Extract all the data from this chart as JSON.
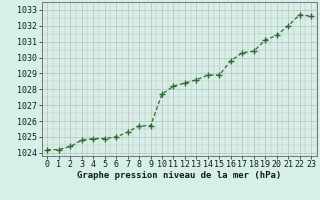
{
  "x": [
    0,
    1,
    2,
    3,
    4,
    5,
    6,
    7,
    8,
    9,
    10,
    11,
    12,
    13,
    14,
    15,
    16,
    17,
    18,
    19,
    20,
    21,
    22,
    23
  ],
  "y": [
    1024.2,
    1024.2,
    1024.4,
    1024.8,
    1024.9,
    1024.9,
    1025.0,
    1025.3,
    1025.7,
    1025.7,
    1027.7,
    1028.2,
    1028.4,
    1028.6,
    1028.9,
    1028.9,
    1029.8,
    1030.3,
    1030.4,
    1031.1,
    1031.4,
    1032.0,
    1032.7,
    1032.6
  ],
  "line_color": "#2d6a2d",
  "marker_color": "#2d6a2d",
  "bg_color": "#d4f0e8",
  "grid_color": "#c8b8b8",
  "xlabel": "Graphe pression niveau de la mer (hPa)",
  "ylabel_ticks": [
    1024,
    1025,
    1026,
    1027,
    1028,
    1029,
    1030,
    1031,
    1032,
    1033
  ],
  "ylim": [
    1023.8,
    1033.5
  ],
  "xlim": [
    -0.5,
    23.5
  ],
  "xlabel_fontsize": 6.5,
  "tick_fontsize": 6.0,
  "title_color": "#1a1a1a"
}
